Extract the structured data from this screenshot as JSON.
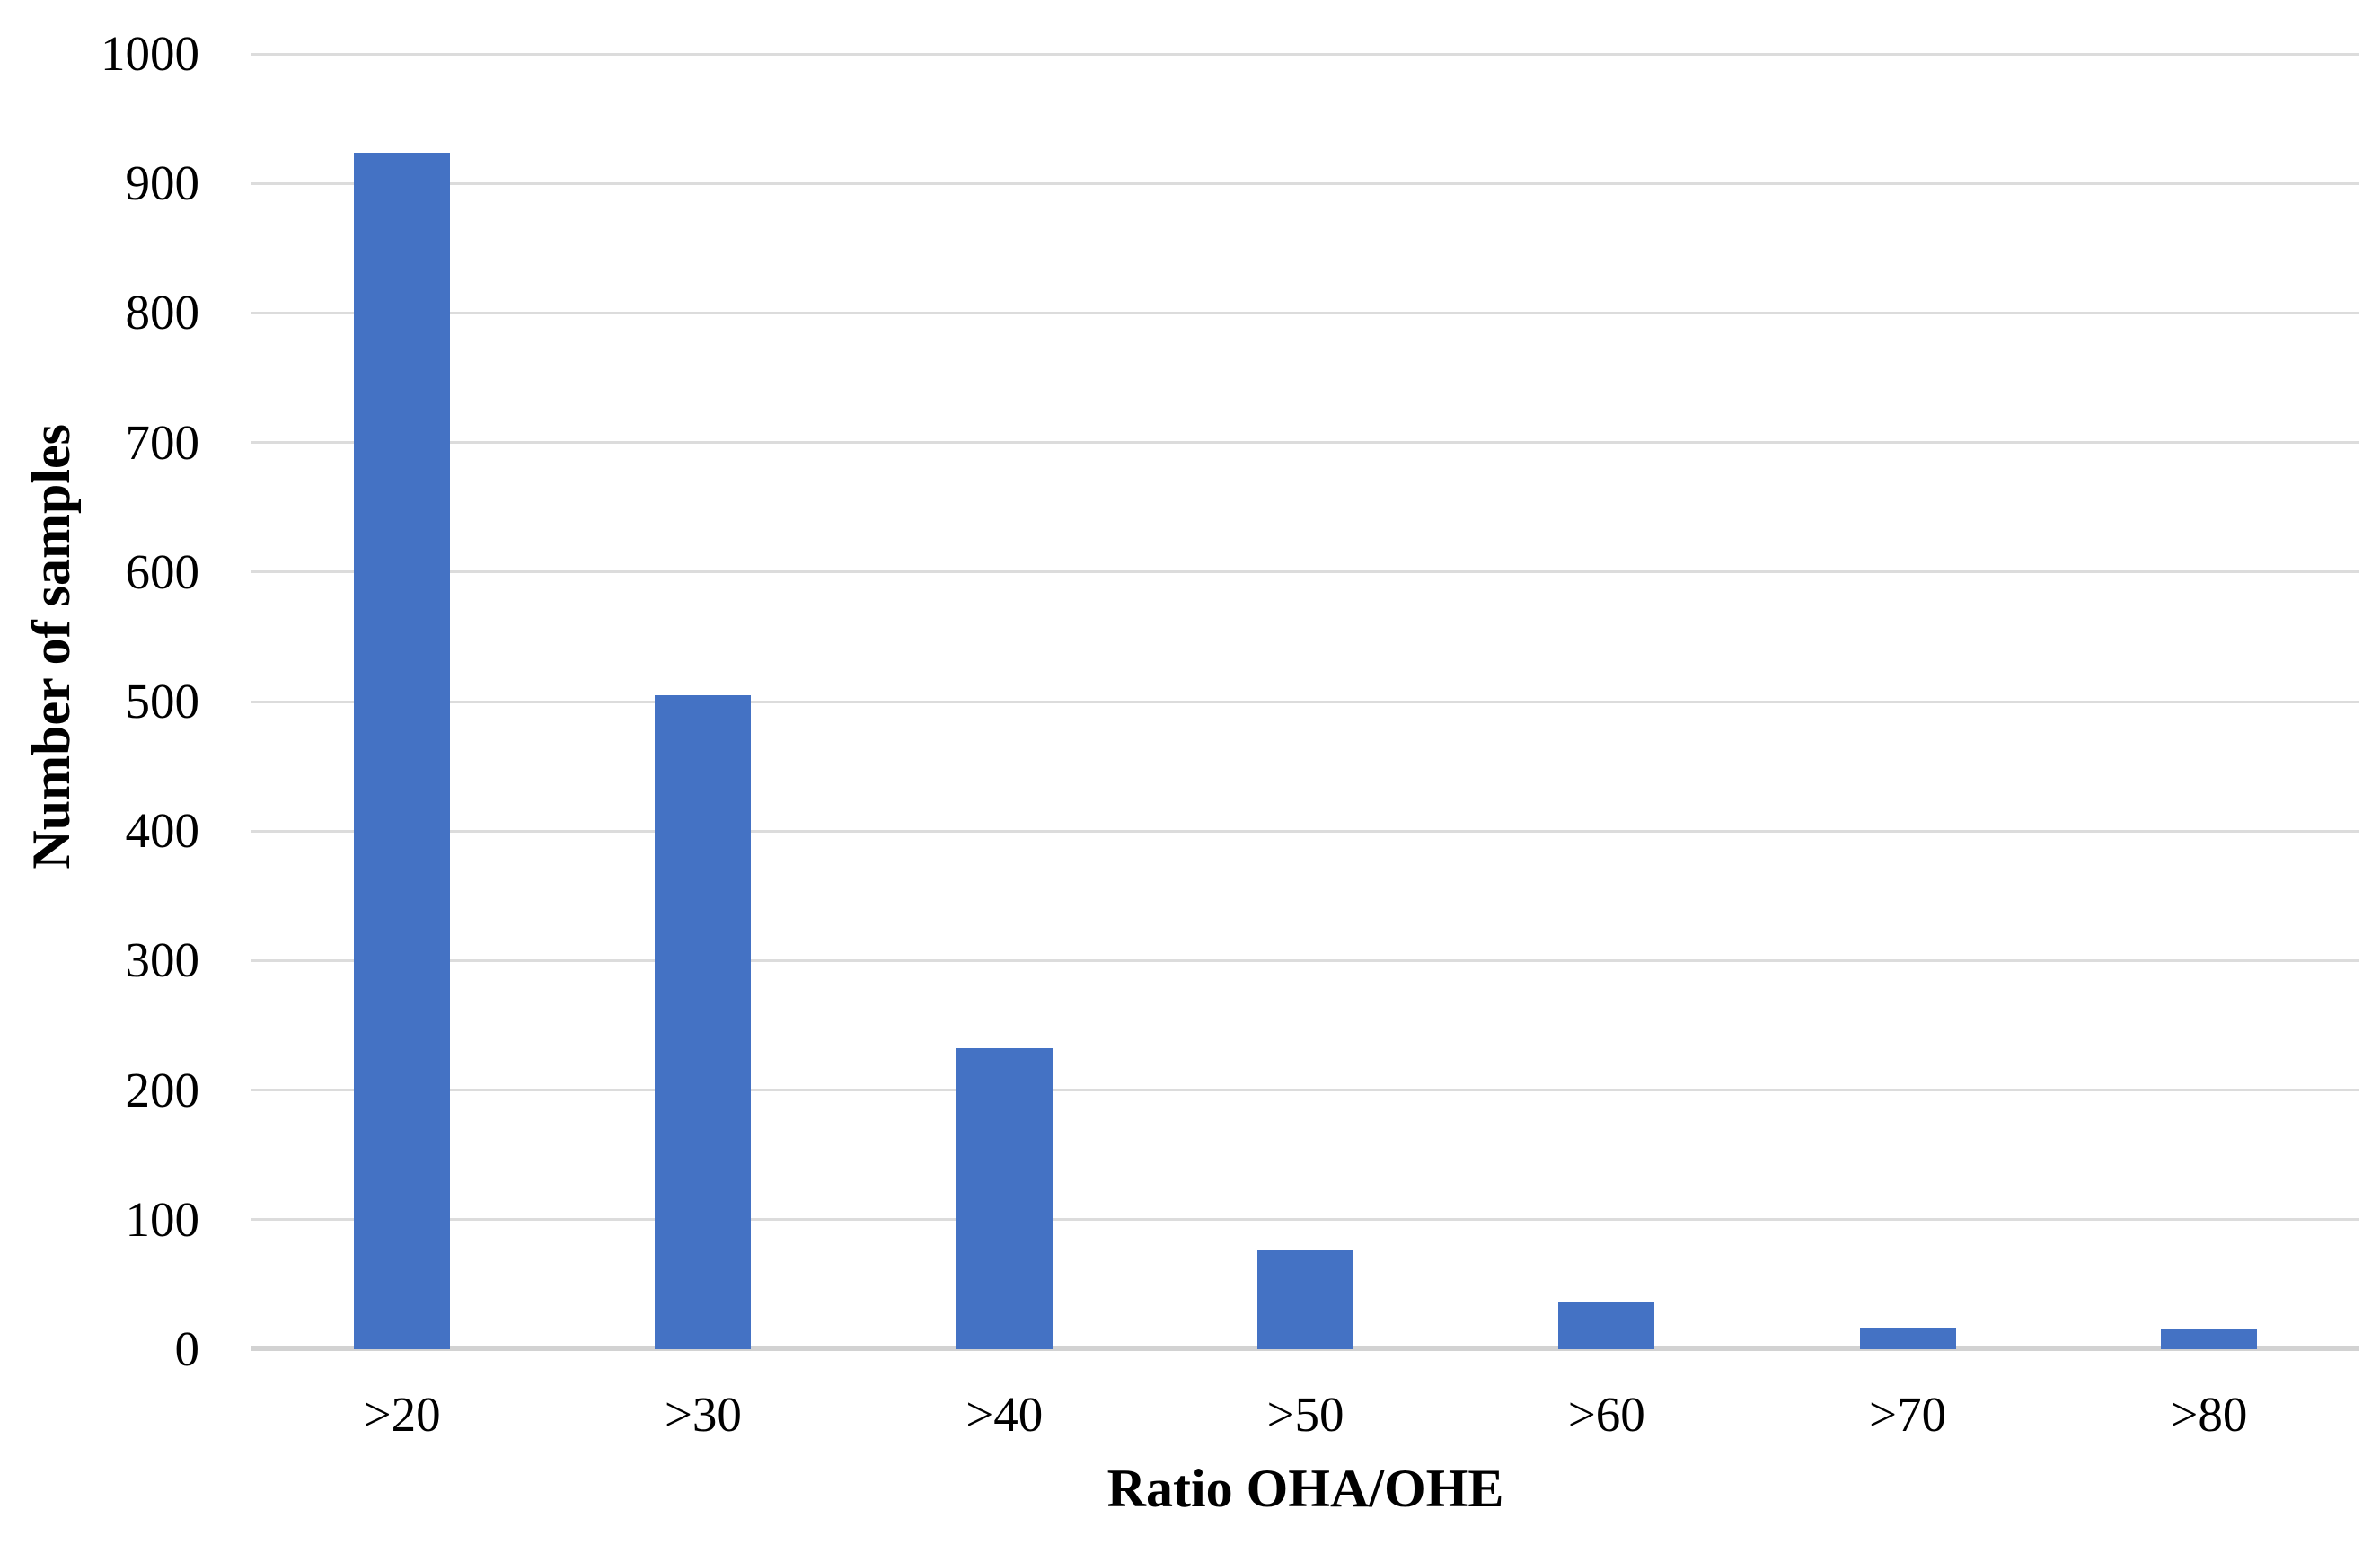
{
  "chart_data": {
    "type": "bar",
    "title": "",
    "xlabel": "Ratio OHA/OHE",
    "ylabel": "Number of samples",
    "categories": [
      ">20",
      ">30",
      ">40",
      ">50",
      ">60",
      ">70",
      ">80"
    ],
    "values": [
      924,
      505,
      232,
      76,
      37,
      17,
      15
    ],
    "ylim": [
      0,
      1000
    ],
    "yticks": [
      0,
      100,
      200,
      300,
      400,
      500,
      600,
      700,
      800,
      900,
      1000
    ],
    "grid": "horizontal-only",
    "legend": "none",
    "colors": {
      "bar": "#4472c4",
      "gridline": "#dcdcdc",
      "axis_line": "#d2d2d2",
      "text": "#000000",
      "background": "#ffffff"
    }
  }
}
